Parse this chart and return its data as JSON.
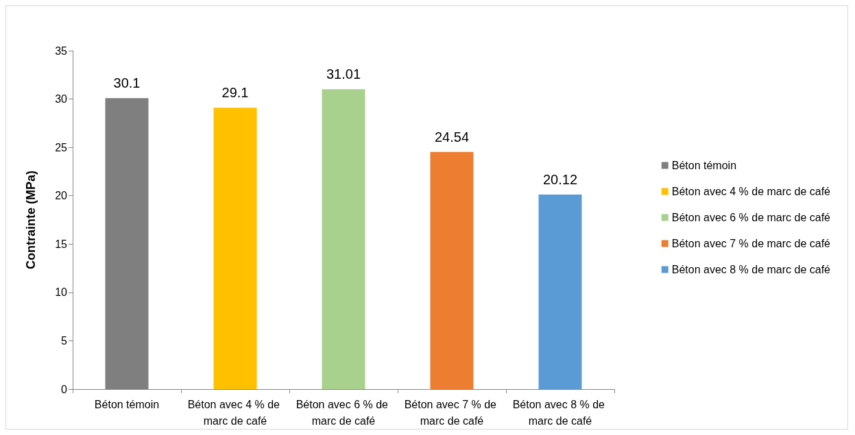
{
  "chart_data": {
    "type": "bar",
    "ylabel": "Contrainte (MPa)",
    "categories": [
      "Béton témoin",
      "Béton avec 4 % de marc de café",
      "Béton avec 6 % de marc de café",
      "Béton avec 7 % de marc de café",
      "Béton avec 8 % de marc de café"
    ],
    "series": [
      {
        "name": "Béton témoin",
        "color": "#7f7f7f",
        "values": [
          30.1,
          null,
          null,
          null,
          null
        ]
      },
      {
        "name": "Béton avec 4 % de marc de café",
        "color": "#ffc000",
        "values": [
          null,
          29.1,
          null,
          null,
          null
        ]
      },
      {
        "name": "Béton avec 6 % de marc de café",
        "color": "#a9d18e",
        "values": [
          null,
          null,
          31.01,
          null,
          null
        ]
      },
      {
        "name": "Béton avec 7 % de marc de café",
        "color": "#ed7d31",
        "values": [
          null,
          null,
          null,
          24.54,
          null
        ]
      },
      {
        "name": "Béton avec 8 % de marc de café",
        "color": "#5b9bd5",
        "values": [
          null,
          null,
          null,
          null,
          20.12
        ]
      }
    ],
    "ylim": [
      0,
      35
    ],
    "yticks": [
      0,
      5,
      10,
      15,
      20,
      25,
      30,
      35
    ],
    "data_labels": true,
    "grid": false,
    "legend": "right"
  }
}
